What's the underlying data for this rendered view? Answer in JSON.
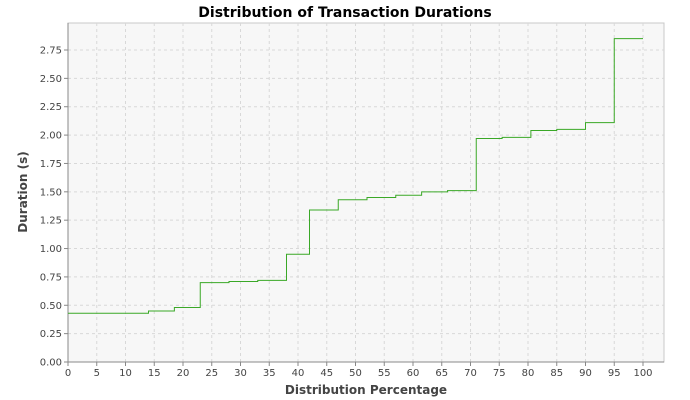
{
  "chart_data": {
    "type": "line",
    "title": "Distribution of Transaction Durations",
    "xlabel": "Distribution Percentage",
    "ylabel": "Duration (s)",
    "xlim": [
      0,
      100
    ],
    "ylim": [
      0,
      2.85
    ],
    "x_ticks": [
      "0",
      "5",
      "10",
      "15",
      "20",
      "25",
      "30",
      "35",
      "40",
      "45",
      "50",
      "55",
      "60",
      "65",
      "70",
      "75",
      "80",
      "85",
      "90",
      "95",
      "100"
    ],
    "y_ticks": [
      "0.00",
      "0.25",
      "0.50",
      "0.75",
      "1.00",
      "1.25",
      "1.50",
      "1.75",
      "2.00",
      "2.25",
      "2.50",
      "2.75"
    ],
    "grid": true,
    "series": [
      {
        "color": "#3aa827",
        "step": true,
        "points": [
          [
            0,
            0.43
          ],
          [
            14,
            0.45
          ],
          [
            18.5,
            0.48
          ],
          [
            23,
            0.7
          ],
          [
            28,
            0.71
          ],
          [
            33,
            0.72
          ],
          [
            38,
            0.95
          ],
          [
            42,
            1.34
          ],
          [
            47,
            1.43
          ],
          [
            52,
            1.45
          ],
          [
            57,
            1.47
          ],
          [
            61.5,
            1.5
          ],
          [
            66,
            1.51
          ],
          [
            71,
            1.97
          ],
          [
            75.5,
            1.98
          ],
          [
            80.5,
            2.04
          ],
          [
            85,
            2.05
          ],
          [
            90,
            2.11
          ],
          [
            95,
            2.85
          ],
          [
            100,
            2.85
          ]
        ]
      }
    ]
  }
}
